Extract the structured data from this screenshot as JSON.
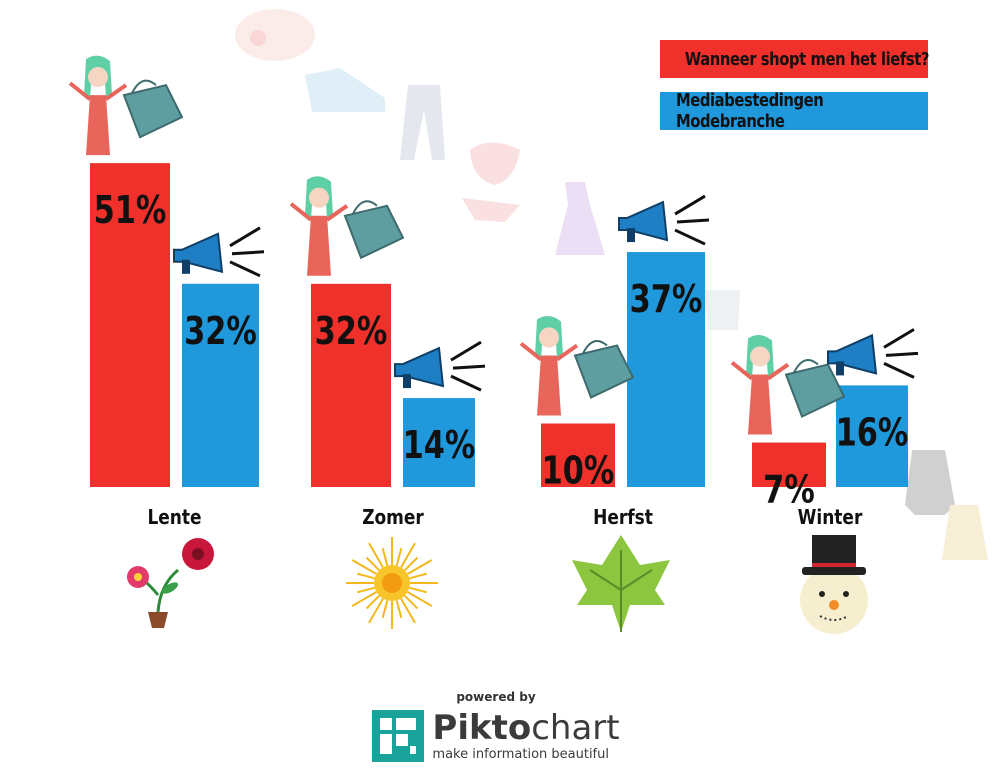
{
  "legend": {
    "shopping": "Wanneer shopt men het liefst?",
    "media": "Mediabestedingen Modebranche"
  },
  "colors": {
    "shopping": "#f0302a",
    "media": "#1f98dc"
  },
  "chart_data": {
    "type": "bar",
    "categories": [
      "Lente",
      "Zomer",
      "Herfst",
      "Winter"
    ],
    "series": [
      {
        "name": "Wanneer shopt men het liefst?",
        "values": [
          51,
          32,
          10,
          7
        ]
      },
      {
        "name": "Mediabestedingen Modebranche",
        "values": [
          32,
          14,
          37,
          16
        ]
      }
    ],
    "value_suffix": "%",
    "legend_position": "top-right",
    "grid": false,
    "ylim": [
      0,
      60
    ],
    "season_icons": [
      "flower-pot-icon",
      "sun-icon",
      "leaf-icon",
      "snowman-icon"
    ]
  },
  "branding": {
    "powered_by": "powered by",
    "logo_bold": "Pikto",
    "logo_light": "chart",
    "tagline": "make information beautiful"
  }
}
